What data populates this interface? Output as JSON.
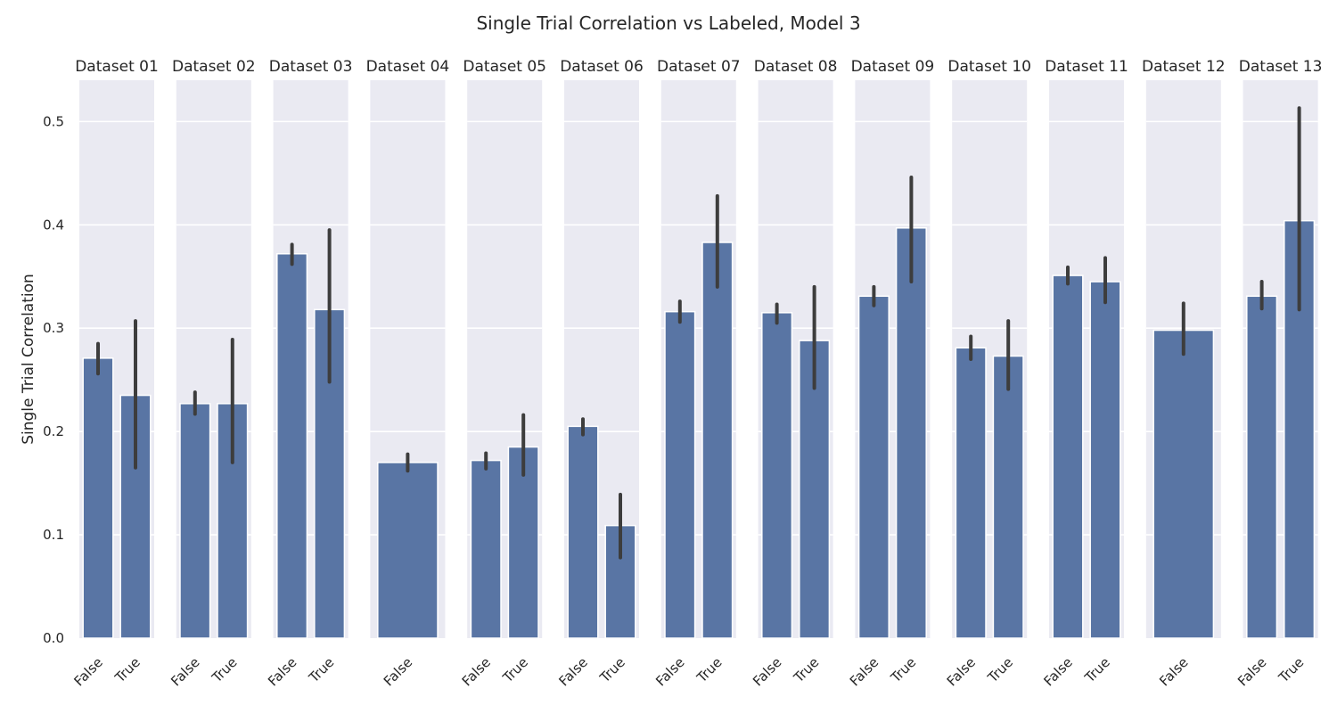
{
  "chart_data": {
    "type": "bar",
    "title": "Single Trial Correlation vs Labeled, Model 3",
    "ylabel": "Single Trial Correlation",
    "xlabel": "",
    "ylim": [
      0,
      0.54
    ],
    "yticks": [
      "0.0",
      "0.1",
      "0.2",
      "0.3",
      "0.4",
      "0.5"
    ],
    "grid": true,
    "colors": {
      "bar": "#5975a4",
      "errorbar": "#3d3d3d",
      "panel_bg": "#eaeaf2",
      "grid": "#ffffff",
      "text": "#262626"
    },
    "panels": [
      {
        "title": "Dataset 01",
        "bars": [
          {
            "label": "False",
            "value": 0.271,
            "ci": [
              0.256,
              0.285
            ]
          },
          {
            "label": "True",
            "value": 0.235,
            "ci": [
              0.165,
              0.307
            ]
          }
        ]
      },
      {
        "title": "Dataset 02",
        "bars": [
          {
            "label": "False",
            "value": 0.227,
            "ci": [
              0.217,
              0.238
            ]
          },
          {
            "label": "True",
            "value": 0.227,
            "ci": [
              0.17,
              0.289
            ]
          }
        ]
      },
      {
        "title": "Dataset 03",
        "bars": [
          {
            "label": "False",
            "value": 0.372,
            "ci": [
              0.362,
              0.381
            ]
          },
          {
            "label": "True",
            "value": 0.318,
            "ci": [
              0.248,
              0.395
            ]
          }
        ]
      },
      {
        "title": "Dataset 04",
        "bars": [
          {
            "label": "False",
            "value": 0.17,
            "ci": [
              0.162,
              0.178
            ]
          }
        ]
      },
      {
        "title": "Dataset 05",
        "bars": [
          {
            "label": "False",
            "value": 0.172,
            "ci": [
              0.164,
              0.179
            ]
          },
          {
            "label": "True",
            "value": 0.185,
            "ci": [
              0.158,
              0.216
            ]
          }
        ]
      },
      {
        "title": "Dataset 06",
        "bars": [
          {
            "label": "False",
            "value": 0.205,
            "ci": [
              0.197,
              0.212
            ]
          },
          {
            "label": "True",
            "value": 0.109,
            "ci": [
              0.078,
              0.139
            ]
          }
        ]
      },
      {
        "title": "Dataset 07",
        "bars": [
          {
            "label": "False",
            "value": 0.316,
            "ci": [
              0.306,
              0.326
            ]
          },
          {
            "label": "True",
            "value": 0.383,
            "ci": [
              0.34,
              0.428
            ]
          }
        ]
      },
      {
        "title": "Dataset 08",
        "bars": [
          {
            "label": "False",
            "value": 0.315,
            "ci": [
              0.305,
              0.323
            ]
          },
          {
            "label": "True",
            "value": 0.288,
            "ci": [
              0.242,
              0.34
            ]
          }
        ]
      },
      {
        "title": "Dataset 09",
        "bars": [
          {
            "label": "False",
            "value": 0.331,
            "ci": [
              0.322,
              0.34
            ]
          },
          {
            "label": "True",
            "value": 0.397,
            "ci": [
              0.345,
              0.446
            ]
          }
        ]
      },
      {
        "title": "Dataset 10",
        "bars": [
          {
            "label": "False",
            "value": 0.281,
            "ci": [
              0.27,
              0.292
            ]
          },
          {
            "label": "True",
            "value": 0.273,
            "ci": [
              0.241,
              0.307
            ]
          }
        ]
      },
      {
        "title": "Dataset 11",
        "bars": [
          {
            "label": "False",
            "value": 0.351,
            "ci": [
              0.343,
              0.359
            ]
          },
          {
            "label": "True",
            "value": 0.345,
            "ci": [
              0.325,
              0.368
            ]
          }
        ]
      },
      {
        "title": "Dataset 12",
        "bars": [
          {
            "label": "False",
            "value": 0.298,
            "ci": [
              0.275,
              0.324
            ]
          }
        ]
      },
      {
        "title": "Dataset 13",
        "bars": [
          {
            "label": "False",
            "value": 0.331,
            "ci": [
              0.319,
              0.345
            ]
          },
          {
            "label": "True",
            "value": 0.404,
            "ci": [
              0.318,
              0.513
            ]
          }
        ]
      }
    ]
  }
}
